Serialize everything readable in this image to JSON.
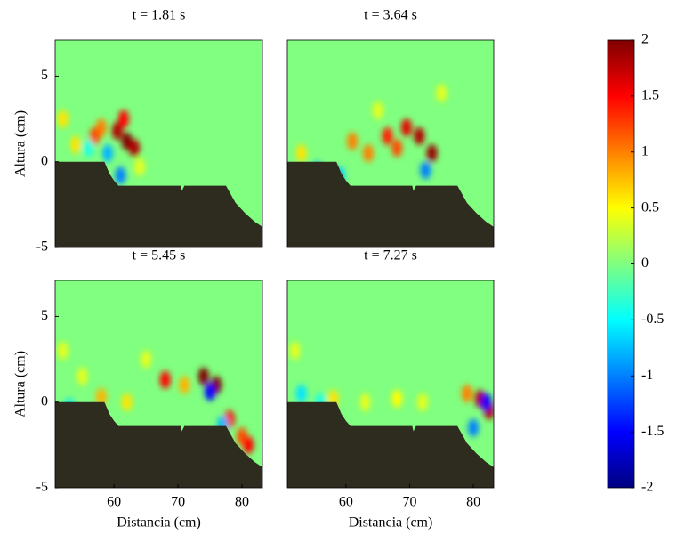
{
  "chart_data": [
    {
      "type": "heatmap",
      "title": "t = 1.81 s",
      "ylabel": "Altura (cm)",
      "xlim": [
        50.8,
        83.2
      ],
      "ylim": [
        -5,
        7.1
      ],
      "yticks": [
        -5,
        0,
        5
      ],
      "bed": {
        "x": [
          50.8,
          58.5,
          59.3,
          60,
          60.7,
          70.4,
          70.6,
          71,
          77.5,
          79,
          80.5,
          82,
          83.2
        ],
        "y": [
          0,
          0,
          -0.7,
          -1.1,
          -1.4,
          -1.4,
          -1.7,
          -1.4,
          -1.4,
          -2.4,
          -3,
          -3.5,
          -3.8
        ]
      },
      "spots": {
        "x": [
          60.5,
          62,
          63.2,
          58,
          57,
          59,
          61,
          52,
          54,
          64,
          56,
          61.5
        ],
        "y": [
          1.8,
          1.2,
          0.8,
          2,
          1.5,
          0.5,
          -0.8,
          2.5,
          1,
          -0.3,
          0.8,
          2.5
        ],
        "z": [
          1.8,
          2,
          1.8,
          1,
          1.2,
          -0.8,
          -1,
          0.6,
          0.6,
          0.4,
          -0.4,
          1.5
        ]
      }
    },
    {
      "type": "heatmap",
      "title": "t = 3.64 s",
      "xlim": [
        50.8,
        83.2
      ],
      "ylim": [
        -5,
        7.1
      ],
      "bed": {
        "x": [
          50.8,
          58.5,
          59.3,
          60,
          60.7,
          70.4,
          70.6,
          71,
          77.5,
          79,
          80.5,
          82,
          83.2
        ],
        "y": [
          0,
          0,
          -0.7,
          -1.1,
          -1.4,
          -1.4,
          -1.7,
          -1.4,
          -1.4,
          -2.4,
          -3,
          -3.5,
          -3.8
        ]
      },
      "spots": {
        "x": [
          69.5,
          71.5,
          73.5,
          66.5,
          63.5,
          61,
          68,
          55.5,
          59,
          72.5,
          53,
          65,
          75
        ],
        "y": [
          2,
          1.5,
          0.5,
          1.5,
          0.5,
          1.2,
          0.8,
          -0.5,
          -0.8,
          -0.5,
          0.5,
          3,
          4
        ],
        "z": [
          1.6,
          1.8,
          1.9,
          1.4,
          1,
          1,
          1.2,
          -0.8,
          -0.7,
          -1,
          0.6,
          0.4,
          0.4
        ]
      }
    },
    {
      "type": "heatmap",
      "title": "t = 5.45 s",
      "xlabel": "Distancia (cm)",
      "ylabel": "Altura (cm)",
      "xlim": [
        50.8,
        83.2
      ],
      "ylim": [
        -5,
        7.1
      ],
      "xticks": [
        60,
        70,
        80
      ],
      "yticks": [
        -5,
        0,
        5
      ],
      "bed": {
        "x": [
          50.8,
          58.5,
          59.3,
          60,
          60.7,
          70.4,
          70.6,
          71,
          77.5,
          79,
          80.5,
          82,
          83.2
        ],
        "y": [
          0,
          0,
          -0.7,
          -1.1,
          -1.4,
          -1.4,
          -1.7,
          -1.4,
          -1.4,
          -2.4,
          -3,
          -3.5,
          -3.8
        ]
      },
      "spots": {
        "x": [
          74,
          76,
          75,
          78,
          80,
          81,
          68,
          71,
          52,
          55,
          58,
          62,
          53,
          77,
          65
        ],
        "y": [
          1.5,
          1,
          0.6,
          -1,
          -2,
          -2.5,
          1.3,
          1,
          3,
          1.5,
          0.3,
          0,
          -0.3,
          -1.3,
          2.5
        ],
        "z": [
          2,
          2,
          -1.5,
          1.5,
          1.2,
          1.5,
          1.5,
          0.8,
          0.4,
          0.4,
          0.8,
          0.6,
          -0.6,
          -0.8,
          0.4
        ]
      }
    },
    {
      "type": "heatmap",
      "title": "t = 7.27 s",
      "xlabel": "Distancia (cm)",
      "xlim": [
        50.8,
        83.2
      ],
      "ylim": [
        -5,
        7.1
      ],
      "xticks": [
        60,
        70,
        80
      ],
      "bed": {
        "x": [
          50.8,
          58.5,
          59.3,
          60,
          60.7,
          70.4,
          70.6,
          71,
          77.5,
          79,
          80.5,
          82,
          83.2
        ],
        "y": [
          0,
          0,
          -0.7,
          -1.1,
          -1.4,
          -1.4,
          -1.7,
          -1.4,
          -1.4,
          -2.4,
          -3,
          -3.5,
          -3.8
        ]
      },
      "spots": {
        "x": [
          81,
          82.5,
          82,
          80,
          79,
          53,
          56,
          58,
          63,
          68,
          52,
          72
        ],
        "y": [
          0.2,
          -0.5,
          0,
          -1.5,
          0.5,
          0.5,
          0,
          0.2,
          0,
          0.2,
          3,
          0
        ],
        "z": [
          1.8,
          1.8,
          -1.5,
          -1,
          1,
          -0.6,
          -0.4,
          0.6,
          0.4,
          0.5,
          0.4,
          0.4
        ]
      }
    },
    {
      "type": "colorbar",
      "clim": [
        -2,
        2
      ],
      "ticks": [
        -2,
        -1.5,
        -1,
        -0.5,
        0,
        0.5,
        1,
        1.5,
        2
      ]
    }
  ]
}
